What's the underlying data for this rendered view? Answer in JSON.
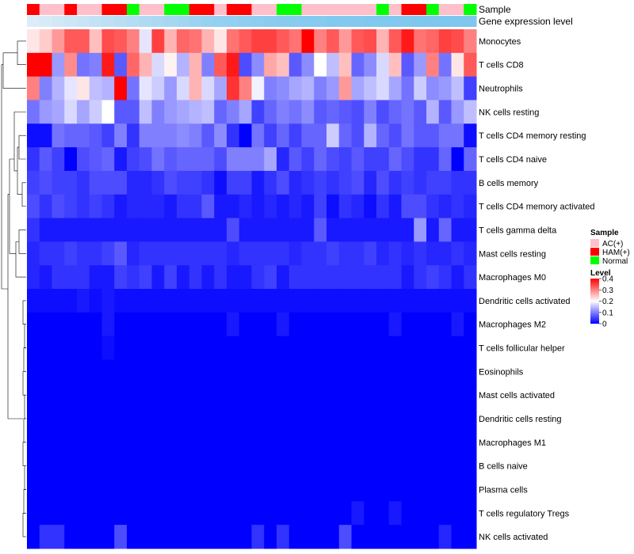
{
  "chart_data": {
    "type": "heatmap",
    "title": "",
    "annotation_labels": [
      "Sample",
      "Gene expression level"
    ],
    "row_labels": [
      "Monocytes",
      "T cells CD8",
      "Neutrophils",
      "NK cells resting",
      "T cells CD4 memory resting",
      "T cells CD4 naive",
      "B cells memory",
      "T cells CD4 memory activated",
      "T cells gamma delta",
      "Mast cells resting",
      "Macrophages M0",
      "Dendritic cells activated",
      "Macrophages M2",
      "T cells follicular helper",
      "Eosinophils",
      "Mast cells activated",
      "Dendritic cells resting",
      "Macrophages M1",
      "B cells naive",
      "Plasma cells",
      "T cells regulatory  Tregs",
      "NK cells activated"
    ],
    "samples": [
      "HAM(+)",
      "AC(+)",
      "AC(+)",
      "HAM(+)",
      "AC(+)",
      "AC(+)",
      "HAM(+)",
      "HAM(+)",
      "Normal",
      "AC(+)",
      "AC(+)",
      "Normal",
      "Normal",
      "HAM(+)",
      "HAM(+)",
      "AC(+)",
      "HAM(+)",
      "HAM(+)",
      "AC(+)",
      "AC(+)",
      "Normal",
      "Normal",
      "AC(+)",
      "AC(+)",
      "AC(+)",
      "AC(+)",
      "AC(+)",
      "AC(+)",
      "Normal",
      "AC(+)",
      "HAM(+)",
      "HAM(+)",
      "Normal",
      "AC(+)",
      "AC(+)",
      "Normal"
    ],
    "values": [
      [
        0.22,
        0.24,
        0.28,
        0.33,
        0.33,
        0.25,
        0.34,
        0.33,
        0.3,
        0.18,
        0.35,
        0.26,
        0.32,
        0.31,
        0.26,
        0.22,
        0.31,
        0.33,
        0.35,
        0.35,
        0.33,
        0.31,
        0.4,
        0.3,
        0.33,
        0.28,
        0.33,
        0.34,
        0.26,
        0.33,
        0.38,
        0.31,
        0.32,
        0.35,
        0.34,
        0.3
      ],
      [
        0.4,
        0.4,
        0.12,
        0.29,
        0.09,
        0.1,
        0.38,
        0.07,
        0.32,
        0.26,
        0.17,
        0.21,
        0.14,
        0.26,
        0.1,
        0.33,
        0.38,
        0.06,
        0.11,
        0.27,
        0.25,
        0.07,
        0.11,
        0.2,
        0.15,
        0.25,
        0.08,
        0.11,
        0.17,
        0.25,
        0.07,
        0.12,
        0.3,
        0.09,
        0.22,
        0.33
      ],
      [
        0.3,
        0.1,
        0.14,
        0.18,
        0.22,
        0.15,
        0.14,
        0.4,
        0.09,
        0.18,
        0.16,
        0.12,
        0.17,
        0.26,
        0.17,
        0.13,
        0.36,
        0.3,
        0.19,
        0.1,
        0.11,
        0.13,
        0.14,
        0.1,
        0.12,
        0.28,
        0.13,
        0.15,
        0.17,
        0.13,
        0.09,
        0.16,
        0.11,
        0.12,
        0.15,
        0.05
      ],
      [
        0.09,
        0.12,
        0.13,
        0.17,
        0.13,
        0.16,
        0.2,
        0.07,
        0.07,
        0.15,
        0.1,
        0.12,
        0.13,
        0.14,
        0.15,
        0.08,
        0.1,
        0.13,
        0.05,
        0.08,
        0.1,
        0.09,
        0.11,
        0.07,
        0.08,
        0.07,
        0.06,
        0.1,
        0.06,
        0.08,
        0.09,
        0.07,
        0.14,
        0.07,
        0.12,
        0.15
      ],
      [
        0.01,
        0.01,
        0.09,
        0.08,
        0.08,
        0.07,
        0.05,
        0.1,
        0.04,
        0.1,
        0.1,
        0.1,
        0.11,
        0.1,
        0.07,
        0.11,
        0.04,
        0.0,
        0.09,
        0.05,
        0.08,
        0.05,
        0.08,
        0.08,
        0.16,
        0.08,
        0.06,
        0.14,
        0.08,
        0.06,
        0.09,
        0.07,
        0.07,
        0.09,
        0.09,
        0.01
      ],
      [
        0.04,
        0.07,
        0.05,
        0.0,
        0.06,
        0.07,
        0.08,
        0.02,
        0.05,
        0.06,
        0.09,
        0.07,
        0.08,
        0.08,
        0.08,
        0.06,
        0.1,
        0.1,
        0.1,
        0.13,
        0.03,
        0.07,
        0.05,
        0.08,
        0.06,
        0.05,
        0.07,
        0.05,
        0.05,
        0.08,
        0.06,
        0.04,
        0.04,
        0.08,
        0.0,
        0.08
      ],
      [
        0.05,
        0.06,
        0.05,
        0.05,
        0.04,
        0.06,
        0.06,
        0.06,
        0.03,
        0.03,
        0.04,
        0.06,
        0.05,
        0.05,
        0.04,
        0.01,
        0.05,
        0.05,
        0.02,
        0.04,
        0.06,
        0.03,
        0.04,
        0.05,
        0.04,
        0.05,
        0.06,
        0.03,
        0.06,
        0.04,
        0.05,
        0.04,
        0.05,
        0.05,
        0.04,
        0.04
      ],
      [
        0.06,
        0.04,
        0.06,
        0.05,
        0.04,
        0.05,
        0.04,
        0.02,
        0.03,
        0.03,
        0.03,
        0.02,
        0.04,
        0.04,
        0.07,
        0.02,
        0.02,
        0.03,
        0.02,
        0.03,
        0.02,
        0.03,
        0.02,
        0.05,
        0.01,
        0.04,
        0.03,
        0.01,
        0.04,
        0.02,
        0.06,
        0.06,
        0.04,
        0.03,
        0.04,
        0.03
      ],
      [
        0.04,
        0.02,
        0.02,
        0.02,
        0.02,
        0.02,
        0.02,
        0.02,
        0.02,
        0.02,
        0.02,
        0.02,
        0.02,
        0.02,
        0.02,
        0.02,
        0.06,
        0.02,
        0.02,
        0.02,
        0.02,
        0.02,
        0.02,
        0.07,
        0.02,
        0.02,
        0.02,
        0.02,
        0.02,
        0.02,
        0.02,
        0.12,
        0.02,
        0.08,
        0.02,
        0.02
      ],
      [
        0.03,
        0.04,
        0.04,
        0.05,
        0.04,
        0.04,
        0.05,
        0.07,
        0.03,
        0.04,
        0.04,
        0.04,
        0.04,
        0.04,
        0.04,
        0.04,
        0.03,
        0.04,
        0.04,
        0.04,
        0.04,
        0.03,
        0.04,
        0.04,
        0.05,
        0.04,
        0.04,
        0.05,
        0.03,
        0.04,
        0.03,
        0.04,
        0.03,
        0.03,
        0.04,
        0.03
      ],
      [
        0.03,
        0.02,
        0.04,
        0.04,
        0.04,
        0.02,
        0.02,
        0.05,
        0.04,
        0.05,
        0.02,
        0.05,
        0.02,
        0.04,
        0.02,
        0.04,
        0.02,
        0.02,
        0.04,
        0.05,
        0.02,
        0.04,
        0.04,
        0.04,
        0.04,
        0.04,
        0.04,
        0.04,
        0.04,
        0.04,
        0.02,
        0.04,
        0.05,
        0.04,
        0.02,
        0.04
      ],
      [
        0.01,
        0.01,
        0.01,
        0.01,
        0.02,
        0.01,
        0.02,
        0.01,
        0.01,
        0.01,
        0.01,
        0.01,
        0.01,
        0.01,
        0.01,
        0.01,
        0.01,
        0.01,
        0.01,
        0.01,
        0.01,
        0.01,
        0.01,
        0.01,
        0.01,
        0.01,
        0.01,
        0.01,
        0.01,
        0.01,
        0.01,
        0.01,
        0.01,
        0.01,
        0.01,
        0.01
      ],
      [
        0.0,
        0.0,
        0.0,
        0.0,
        0.0,
        0.0,
        0.02,
        0.0,
        0.0,
        0.0,
        0.0,
        0.0,
        0.0,
        0.0,
        0.0,
        0.0,
        0.02,
        0.0,
        0.0,
        0.0,
        0.02,
        0.0,
        0.0,
        0.0,
        0.0,
        0.0,
        0.0,
        0.0,
        0.0,
        0.02,
        0.0,
        0.0,
        0.0,
        0.0,
        0.02,
        0.0
      ],
      [
        0.0,
        0.0,
        0.0,
        0.0,
        0.0,
        0.0,
        0.01,
        0.0,
        0.0,
        0.0,
        0.0,
        0.0,
        0.0,
        0.0,
        0.0,
        0.0,
        0.0,
        0.0,
        0.0,
        0.0,
        0.0,
        0.0,
        0.0,
        0.0,
        0.0,
        0.0,
        0.0,
        0.0,
        0.0,
        0.0,
        0.0,
        0.0,
        0.0,
        0.0,
        0.0,
        0.0
      ],
      [
        0.0,
        0.0,
        0.0,
        0.0,
        0.0,
        0.0,
        0.0,
        0.0,
        0.0,
        0.0,
        0.0,
        0.0,
        0.0,
        0.0,
        0.0,
        0.0,
        0.0,
        0.0,
        0.0,
        0.0,
        0.0,
        0.0,
        0.0,
        0.0,
        0.0,
        0.0,
        0.0,
        0.0,
        0.0,
        0.0,
        0.0,
        0.0,
        0.0,
        0.0,
        0.0,
        0.0
      ],
      [
        0.0,
        0.0,
        0.0,
        0.0,
        0.0,
        0.0,
        0.0,
        0.0,
        0.0,
        0.0,
        0.0,
        0.0,
        0.0,
        0.0,
        0.0,
        0.0,
        0.0,
        0.0,
        0.0,
        0.0,
        0.0,
        0.0,
        0.0,
        0.0,
        0.0,
        0.0,
        0.0,
        0.0,
        0.0,
        0.0,
        0.0,
        0.0,
        0.0,
        0.0,
        0.0,
        0.0
      ],
      [
        0.0,
        0.0,
        0.0,
        0.0,
        0.0,
        0.0,
        0.0,
        0.0,
        0.0,
        0.0,
        0.0,
        0.0,
        0.0,
        0.0,
        0.0,
        0.0,
        0.0,
        0.0,
        0.0,
        0.0,
        0.0,
        0.0,
        0.0,
        0.0,
        0.0,
        0.0,
        0.0,
        0.0,
        0.0,
        0.0,
        0.0,
        0.0,
        0.0,
        0.0,
        0.0,
        0.0
      ],
      [
        0.0,
        0.0,
        0.0,
        0.0,
        0.0,
        0.0,
        0.0,
        0.0,
        0.0,
        0.0,
        0.0,
        0.0,
        0.0,
        0.0,
        0.0,
        0.0,
        0.0,
        0.0,
        0.0,
        0.0,
        0.0,
        0.0,
        0.0,
        0.0,
        0.0,
        0.0,
        0.0,
        0.0,
        0.0,
        0.0,
        0.0,
        0.0,
        0.0,
        0.0,
        0.0,
        0.0
      ],
      [
        0.0,
        0.0,
        0.0,
        0.0,
        0.0,
        0.0,
        0.0,
        0.0,
        0.0,
        0.0,
        0.0,
        0.0,
        0.0,
        0.0,
        0.0,
        0.0,
        0.0,
        0.0,
        0.0,
        0.0,
        0.0,
        0.0,
        0.0,
        0.0,
        0.0,
        0.0,
        0.0,
        0.0,
        0.0,
        0.0,
        0.0,
        0.0,
        0.0,
        0.0,
        0.0,
        0.0
      ],
      [
        0.0,
        0.0,
        0.0,
        0.0,
        0.0,
        0.0,
        0.0,
        0.0,
        0.0,
        0.0,
        0.0,
        0.0,
        0.0,
        0.0,
        0.0,
        0.0,
        0.0,
        0.0,
        0.0,
        0.0,
        0.0,
        0.0,
        0.0,
        0.0,
        0.0,
        0.0,
        0.0,
        0.0,
        0.0,
        0.0,
        0.0,
        0.0,
        0.0,
        0.0,
        0.0,
        0.0
      ],
      [
        0.0,
        0.0,
        0.0,
        0.0,
        0.0,
        0.0,
        0.0,
        0.0,
        0.0,
        0.0,
        0.0,
        0.0,
        0.0,
        0.0,
        0.0,
        0.0,
        0.0,
        0.0,
        0.0,
        0.0,
        0.0,
        0.0,
        0.0,
        0.0,
        0.0,
        0.0,
        0.02,
        0.0,
        0.0,
        0.02,
        0.0,
        0.0,
        0.0,
        0.0,
        0.0,
        0.0
      ],
      [
        0.0,
        0.04,
        0.04,
        0.0,
        0.0,
        0.0,
        0.0,
        0.06,
        0.0,
        0.0,
        0.0,
        0.0,
        0.0,
        0.0,
        0.0,
        0.0,
        0.0,
        0.0,
        0.04,
        0.0,
        0.04,
        0.0,
        0.0,
        0.0,
        0.0,
        0.06,
        0.0,
        0.0,
        0.0,
        0.0,
        0.0,
        0.0,
        0.0,
        0.03,
        0.0,
        0.0
      ]
    ],
    "gene_expression_level": [
      0.62,
      0.64,
      0.66,
      0.68,
      0.7,
      0.72,
      0.74,
      0.76,
      0.78,
      0.8,
      0.82,
      0.84,
      0.86,
      0.88,
      0.9,
      0.91,
      0.92,
      0.93,
      0.94,
      0.95,
      0.96,
      0.96,
      0.97,
      0.97,
      0.98,
      0.98,
      0.98,
      0.99,
      0.99,
      0.99,
      0.99,
      1.0,
      1.0,
      1.0,
      1.0,
      1.0
    ],
    "color_scale": {
      "min": 0,
      "mid": 0.2,
      "max": 0.4,
      "low_color": "#0000ff",
      "mid_color": "#ffffff",
      "high_color": "#ff0000"
    },
    "legend": {
      "sample_title": "Sample",
      "sample_items": [
        {
          "label": "AC(+)",
          "color": "#ffc0cb"
        },
        {
          "label": "HAM(+)",
          "color": "#ff0000"
        },
        {
          "label": "Normal",
          "color": "#00ff00"
        }
      ],
      "level_title": "Level",
      "level_ticks": [
        "0.4",
        "0.3",
        "0.2",
        "0.1",
        "0"
      ],
      "level_tick_values": [
        0.4,
        0.3,
        0.2,
        0.1,
        0
      ]
    },
    "gene_expression_colors": {
      "low": "#dcecf8",
      "high": "#7ec7ee"
    },
    "dendrogram_present": true
  }
}
